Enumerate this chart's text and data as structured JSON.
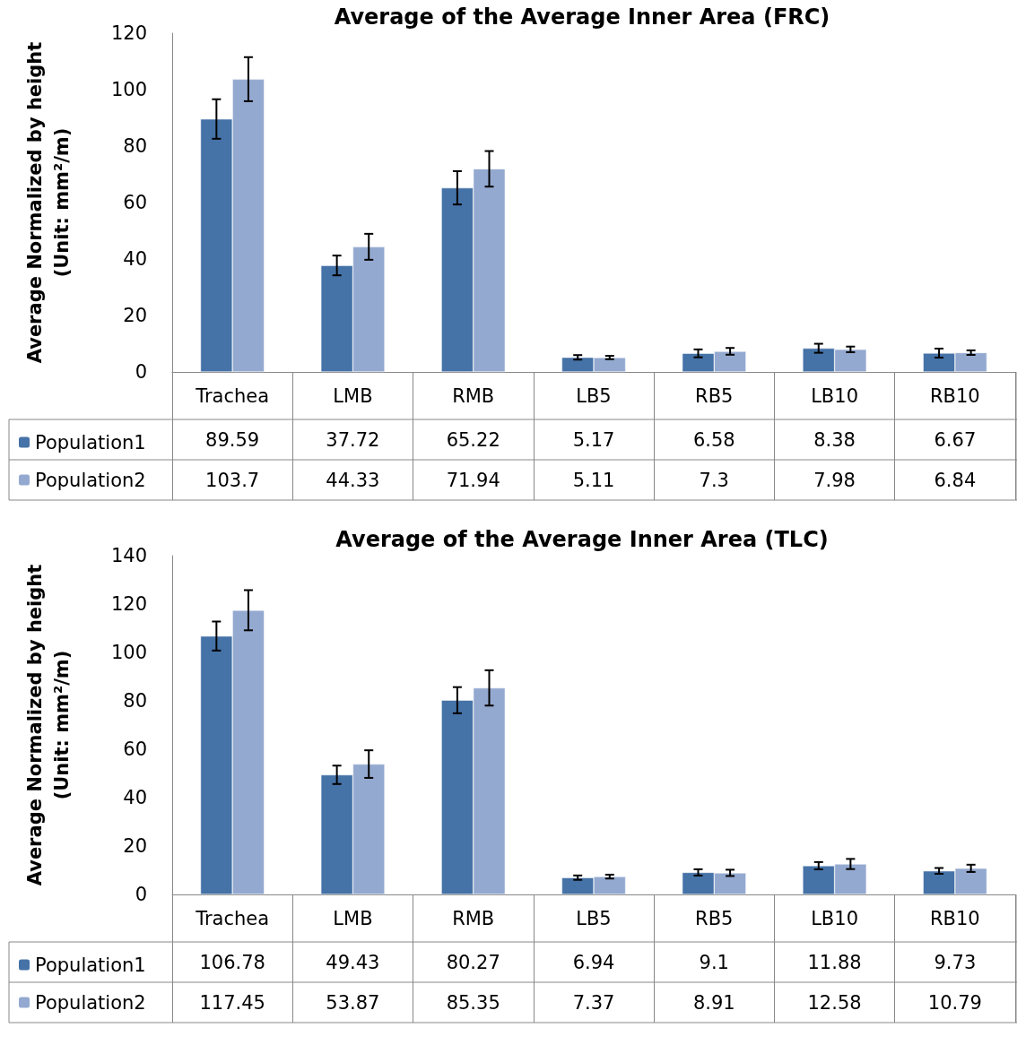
{
  "chart_data": [
    {
      "type": "bar",
      "title": "Average of the Average Inner Area (FRC)",
      "ylabel": "Average Normalized by height\n(Unit: mm²/m)",
      "categories": [
        "Trachea",
        "LMB",
        "RMB",
        "LB5",
        "RB5",
        "LB10",
        "RB10"
      ],
      "series": [
        {
          "name": "Population1",
          "color": "#4572a7",
          "values": [
            89.59,
            37.72,
            65.22,
            5.17,
            6.58,
            8.38,
            6.67
          ],
          "errors": [
            7,
            3.5,
            5.9,
            0.8,
            1.4,
            1.6,
            1.6
          ]
        },
        {
          "name": "Population2",
          "color": "#94a9d0",
          "values": [
            103.7,
            44.33,
            71.94,
            5.11,
            7.3,
            7.98,
            6.84
          ],
          "errors": [
            7.8,
            4.6,
            6.3,
            0.6,
            1.2,
            1.0,
            0.8
          ]
        }
      ],
      "ylim": [
        0,
        120
      ],
      "yticks": [
        0,
        20,
        40,
        60,
        80,
        100,
        120
      ],
      "grid": false,
      "legend": "bottom left",
      "data_labels": true
    },
    {
      "type": "bar",
      "title": "Average of the Average Inner Area (TLC)",
      "ylabel": "Average Normalized by height\n(Unit: mm²/m)",
      "categories": [
        "Trachea",
        "LMB",
        "RMB",
        "LB5",
        "RB5",
        "LB10",
        "RB10"
      ],
      "series": [
        {
          "name": "Population1",
          "color": "#4572a7",
          "values": [
            106.78,
            49.43,
            80.27,
            6.94,
            9.1,
            11.88,
            9.73
          ],
          "errors": [
            6.0,
            3.8,
            5.4,
            0.9,
            1.3,
            1.5,
            1.2
          ]
        },
        {
          "name": "Population2",
          "color": "#94a9d0",
          "values": [
            117.45,
            53.87,
            85.35,
            7.37,
            8.91,
            12.58,
            10.79
          ],
          "errors": [
            8.3,
            5.7,
            7.3,
            0.8,
            1.3,
            2.1,
            1.5
          ]
        }
      ],
      "ylim": [
        0,
        140
      ],
      "yticks": [
        0,
        20,
        40,
        60,
        80,
        100,
        120,
        140
      ],
      "grid": false,
      "legend": "bottom left",
      "data_labels": true
    }
  ]
}
